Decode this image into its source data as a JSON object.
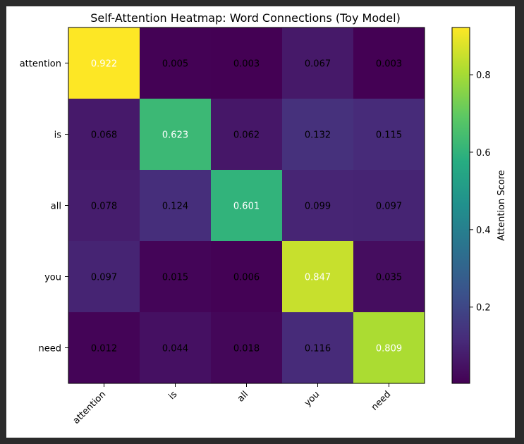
{
  "chart_data": {
    "type": "heatmap",
    "title": "Self-Attention Heatmap: Word Connections (Toy Model)",
    "x_labels": [
      "attention",
      "is",
      "all",
      "you",
      "need"
    ],
    "y_labels": [
      "attention",
      "is",
      "all",
      "you",
      "need"
    ],
    "values": [
      [
        0.922,
        0.005,
        0.003,
        0.067,
        0.003
      ],
      [
        0.068,
        0.623,
        0.062,
        0.132,
        0.115
      ],
      [
        0.078,
        0.124,
        0.601,
        0.099,
        0.097
      ],
      [
        0.097,
        0.015,
        0.006,
        0.847,
        0.035
      ],
      [
        0.012,
        0.044,
        0.018,
        0.116,
        0.809
      ]
    ],
    "cell_labels": [
      [
        "0.922",
        "0.005",
        "0.003",
        "0.067",
        "0.003"
      ],
      [
        "0.068",
        "0.623",
        "0.062",
        "0.132",
        "0.115"
      ],
      [
        "0.078",
        "0.124",
        "0.601",
        "0.099",
        "0.097"
      ],
      [
        "0.097",
        "0.015",
        "0.006",
        "0.847",
        "0.035"
      ],
      [
        "0.012",
        "0.044",
        "0.018",
        "0.116",
        "0.809"
      ]
    ],
    "colormap": "viridis",
    "vmin": 0.003,
    "vmax": 0.922,
    "colorbar": {
      "label": "Attention Score",
      "ticks": [
        0.2,
        0.4,
        0.6,
        0.8
      ],
      "tick_labels": [
        "0.2",
        "0.4",
        "0.6",
        "0.8"
      ]
    },
    "annotation_colors": {
      "dark_cell": "#ffffff",
      "light_cell": "#000000"
    }
  }
}
